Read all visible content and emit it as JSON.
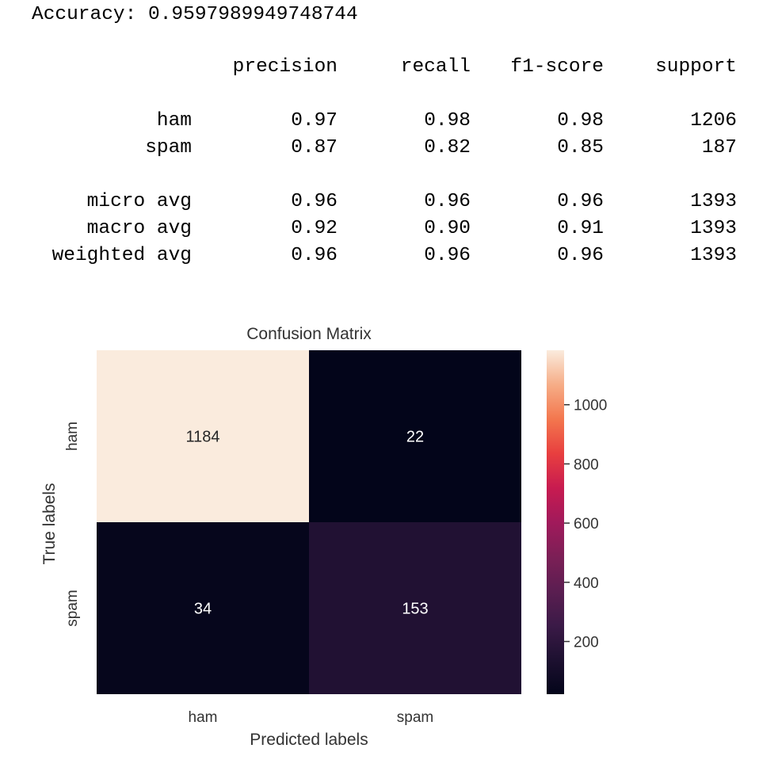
{
  "accuracy_label": "Accuracy:",
  "accuracy_value": "0.9597989949748744",
  "report": {
    "headers": [
      "precision",
      "recall",
      "f1-score",
      "support"
    ],
    "rows": [
      {
        "label": "ham",
        "precision": "0.97",
        "recall": "0.98",
        "f1": "0.98",
        "support": "1206"
      },
      {
        "label": "spam",
        "precision": "0.87",
        "recall": "0.82",
        "f1": "0.85",
        "support": "187"
      },
      {
        "label": "micro avg",
        "precision": "0.96",
        "recall": "0.96",
        "f1": "0.96",
        "support": "1393"
      },
      {
        "label": "macro avg",
        "precision": "0.92",
        "recall": "0.90",
        "f1": "0.91",
        "support": "1393"
      },
      {
        "label": "weighted avg",
        "precision": "0.96",
        "recall": "0.96",
        "f1": "0.96",
        "support": "1393"
      }
    ]
  },
  "chart_data": {
    "type": "heatmap",
    "title": "Confusion Matrix",
    "xlabel": "Predicted labels",
    "ylabel": "True labels",
    "x_categories": [
      "ham",
      "spam"
    ],
    "y_categories": [
      "ham",
      "spam"
    ],
    "values": [
      [
        1184,
        22
      ],
      [
        34,
        153
      ]
    ],
    "colormap": "rocket",
    "colorbar": {
      "ticks": [
        200,
        400,
        600,
        800,
        1000
      ],
      "range": [
        22,
        1184
      ]
    },
    "grid": false
  }
}
